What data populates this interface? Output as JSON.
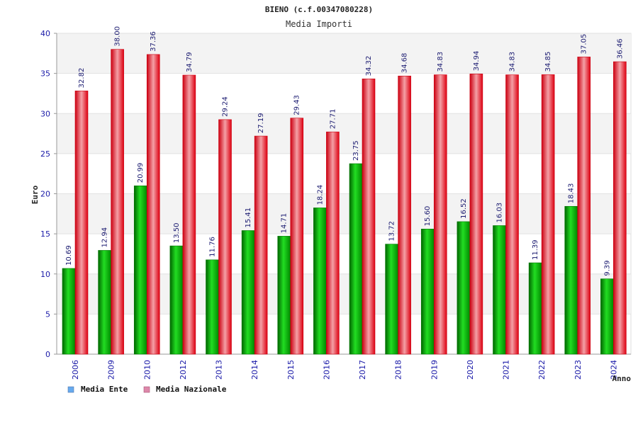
{
  "chart_data": {
    "type": "bar",
    "title": "BIENO (c.f.00347080228)",
    "subtitle": "Media Importi",
    "xlabel": "Anno",
    "ylabel": "Euro",
    "ylim": [
      0,
      40
    ],
    "yticks": [
      0,
      5,
      10,
      15,
      20,
      25,
      30,
      35,
      40
    ],
    "categories": [
      "2006",
      "2009",
      "2010",
      "2012",
      "2013",
      "2014",
      "2015",
      "2016",
      "2017",
      "2018",
      "2019",
      "2020",
      "2021",
      "2022",
      "2023",
      "2024"
    ],
    "series": [
      {
        "name": "Media Ente",
        "bar_color": "#00b800",
        "legend_color": "#66aaee",
        "values": [
          10.69,
          12.94,
          20.99,
          13.5,
          11.76,
          15.41,
          14.71,
          18.24,
          23.75,
          13.72,
          15.6,
          16.52,
          16.03,
          11.39,
          18.43,
          9.39
        ],
        "labels": [
          "10.69",
          "12.94",
          "20.99",
          "13.50",
          "11.76",
          "15.41",
          "14.71",
          "18.24",
          "23.75",
          "13.72",
          "15.60",
          "16.52",
          "16.03",
          "11.39",
          "18.43",
          "9.39"
        ]
      },
      {
        "name": "Media Nazionale",
        "bar_color": "#ee1122",
        "legend_color": "#dd88aa",
        "values": [
          32.82,
          38.0,
          37.36,
          34.79,
          29.24,
          27.19,
          29.43,
          27.71,
          34.32,
          34.68,
          34.83,
          34.94,
          34.83,
          34.85,
          37.05,
          36.46
        ],
        "labels": [
          "32.82",
          "38.00",
          "37.36",
          "34.79",
          "29.24",
          "27.19",
          "29.43",
          "27.71",
          "34.32",
          "34.68",
          "34.83",
          "34.94",
          "34.83",
          "34.85",
          "37.05",
          "36.46"
        ]
      }
    ],
    "grid": true,
    "legend_position": "bottom-left"
  }
}
